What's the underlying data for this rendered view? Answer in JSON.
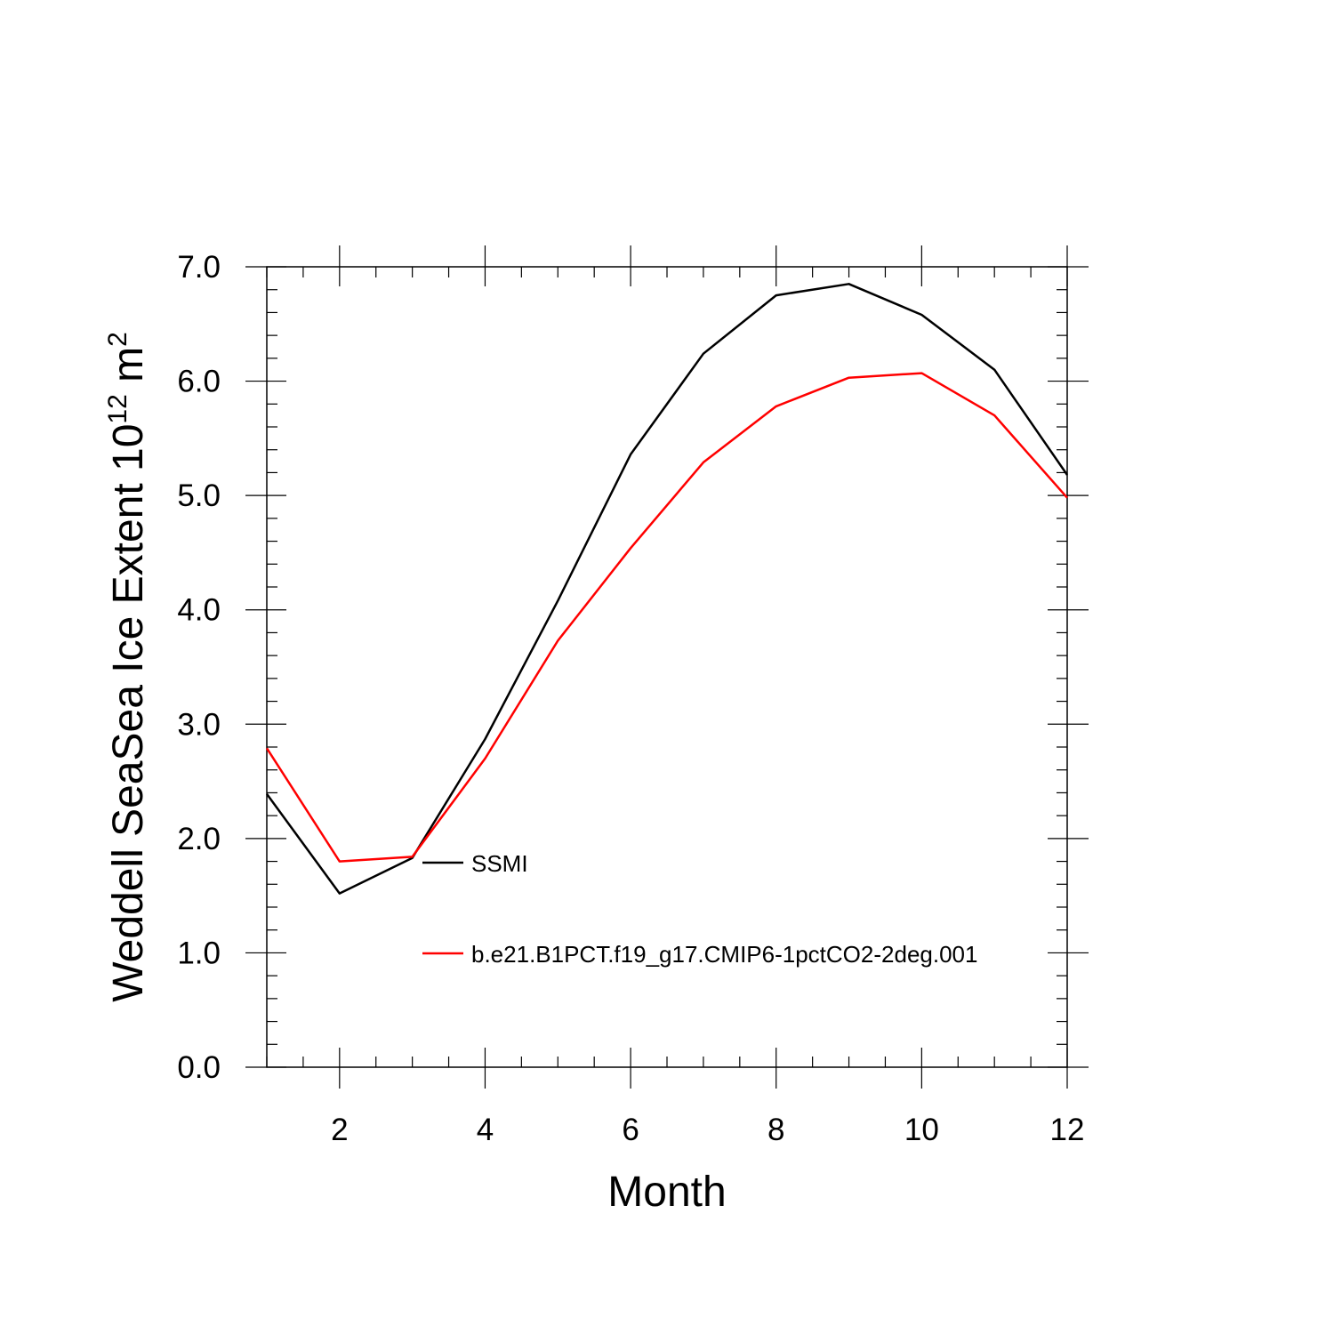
{
  "chart_data": {
    "type": "line",
    "xlabel": "Month",
    "ylabel": {
      "text": "Weddell SeaSea Ice Extent 10",
      "superscript": "12",
      "unit": " m",
      "unit_superscript": "2"
    },
    "xlim": [
      1,
      12
    ],
    "ylim": [
      0,
      7
    ],
    "x_ticks": [
      2,
      4,
      6,
      8,
      10,
      12
    ],
    "x_tick_labels": [
      "2",
      "4",
      "6",
      "8",
      "10",
      "12"
    ],
    "y_ticks": [
      0,
      1,
      2,
      3,
      4,
      5,
      6,
      7
    ],
    "y_tick_labels": [
      "0.0",
      "1.0",
      "2.0",
      "3.0",
      "4.0",
      "5.0",
      "6.0",
      "7.0"
    ],
    "x": [
      1,
      2,
      3,
      4,
      5,
      6,
      7,
      8,
      9,
      10,
      11,
      12
    ],
    "series": [
      {
        "name": "SSMI",
        "color": "#000000",
        "values": [
          2.39,
          1.52,
          1.83,
          2.87,
          4.08,
          5.36,
          6.24,
          6.75,
          6.85,
          6.58,
          6.1,
          5.18
        ]
      },
      {
        "name": "b.e21.B1PCT.f19_g17.CMIP6-1pctCO2-2deg.001",
        "color": "#ff0000",
        "values": [
          2.79,
          1.8,
          1.84,
          2.7,
          3.73,
          4.54,
          5.29,
          5.78,
          6.03,
          6.07,
          5.7,
          4.98
        ]
      }
    ],
    "legend_placement": "lower-center inside plot",
    "grid": false
  }
}
